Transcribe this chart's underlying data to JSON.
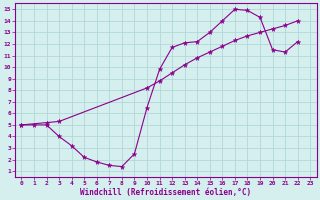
{
  "line1_x": [
    0,
    1,
    2,
    3,
    4,
    5,
    6,
    7,
    8,
    9,
    10,
    11,
    12,
    13,
    14,
    15,
    16,
    17,
    18,
    19,
    20,
    21,
    22
  ],
  "line1_y": [
    5.0,
    5.0,
    5.0,
    4.0,
    3.2,
    2.2,
    1.8,
    1.5,
    1.4,
    2.5,
    6.5,
    9.8,
    11.7,
    12.1,
    12.2,
    13.0,
    14.0,
    15.0,
    14.9,
    14.3,
    11.5,
    11.3,
    12.2
  ],
  "line2_x": [
    0,
    2,
    3,
    10,
    11,
    12,
    13,
    14,
    15,
    16,
    17,
    18,
    19,
    20,
    21,
    22
  ],
  "line2_y": [
    5.0,
    5.2,
    5.3,
    8.2,
    8.8,
    9.5,
    10.2,
    10.8,
    11.3,
    11.8,
    12.3,
    12.7,
    13.0,
    13.3,
    13.6,
    14.0
  ],
  "line_color": "#8B008B",
  "bg_color": "#d5eeee",
  "grid_color": "#aad4d4",
  "xlabel": "Windchill (Refroidissement éolien,°C)",
  "xlim": [
    -0.5,
    23.5
  ],
  "ylim": [
    0.5,
    15.5
  ],
  "xticks": [
    0,
    1,
    2,
    3,
    4,
    5,
    6,
    7,
    8,
    9,
    10,
    11,
    12,
    13,
    14,
    15,
    16,
    17,
    18,
    19,
    20,
    21,
    22,
    23
  ],
  "yticks": [
    1,
    2,
    3,
    4,
    5,
    6,
    7,
    8,
    9,
    10,
    11,
    12,
    13,
    14,
    15
  ],
  "tick_fontsize": 4.5,
  "xlabel_fontsize": 5.5
}
